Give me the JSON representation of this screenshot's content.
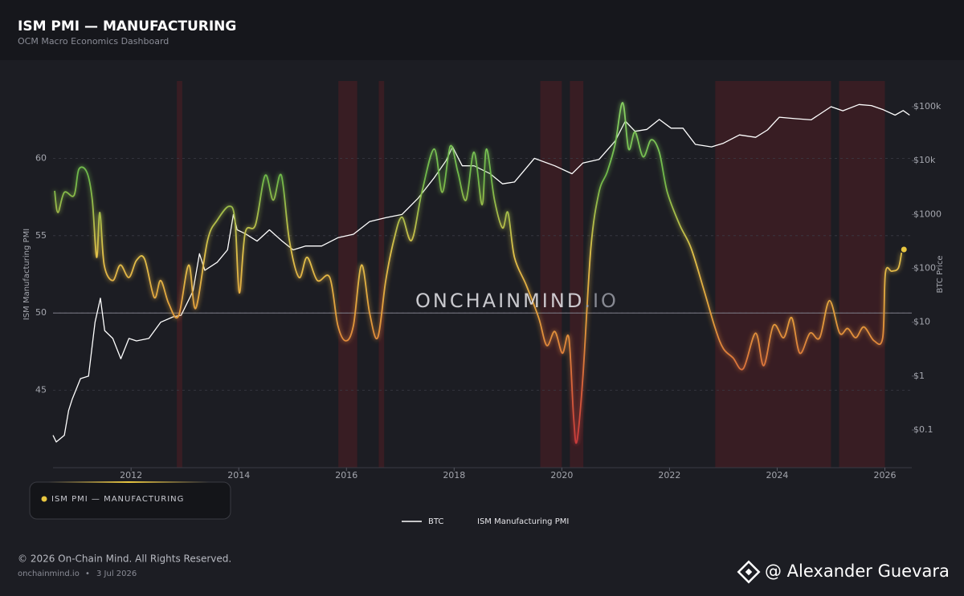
{
  "header": {
    "title": "ISM PMI — MANUFACTURING",
    "subtitle": "OCM Macro Economics Dashboard"
  },
  "card": {
    "label": "ISM PMI — MANUFACTURING"
  },
  "watermark": {
    "main": "ONCHAINMIND",
    "suffix": ".IO"
  },
  "chart_data": {
    "type": "line",
    "y_label": "ISM Manufacturing PMI",
    "y2_label": "BTC Price",
    "xlim": [
      2010.55,
      2026.5
    ],
    "xticks": [
      2012,
      2014,
      2016,
      2018,
      2020,
      2022,
      2024,
      2026
    ],
    "ylim": [
      40,
      65
    ],
    "yticks": [
      45,
      50,
      55,
      60
    ],
    "y2lim": [
      0.02,
      300000
    ],
    "y2ticks": [
      {
        "value": 100000,
        "label": "$100k"
      },
      {
        "value": 10000,
        "label": "$10k"
      },
      {
        "value": 1000,
        "label": "$1000"
      },
      {
        "value": 100,
        "label": "$100"
      },
      {
        "value": 10,
        "label": "$10"
      },
      {
        "value": 1,
        "label": "$1"
      },
      {
        "value": 0.1,
        "label": "$0.1"
      }
    ],
    "y2_log": true,
    "grid": true,
    "reference_line": 50,
    "shaded_regions": [
      [
        2012.85,
        2012.95
      ],
      [
        2015.85,
        2016.2
      ],
      [
        2016.6,
        2016.7
      ],
      [
        2019.6,
        2020.0
      ],
      [
        2020.15,
        2020.4
      ],
      [
        2022.85,
        2025.0
      ],
      [
        2025.15,
        2026.0
      ]
    ],
    "legend": "bottom",
    "series": [
      {
        "name": "BTC",
        "color": "#ffffff",
        "axis": "y2",
        "x": [
          2010.55,
          2010.61,
          2010.76,
          2010.84,
          2010.91,
          2011.06,
          2011.21,
          2011.33,
          2011.43,
          2011.51,
          2011.66,
          2011.81,
          2011.96,
          2012.1,
          2012.33,
          2012.55,
          2012.78,
          2012.93,
          2013.15,
          2013.27,
          2013.37,
          2013.6,
          2013.79,
          2013.9,
          2013.97,
          2014.12,
          2014.34,
          2014.57,
          2014.79,
          2015.01,
          2015.24,
          2015.54,
          2015.84,
          2016.13,
          2016.43,
          2016.73,
          2017.03,
          2017.33,
          2017.63,
          2017.85,
          2017.97,
          2018.15,
          2018.37,
          2018.67,
          2018.9,
          2019.12,
          2019.34,
          2019.49,
          2019.87,
          2020.19,
          2020.39,
          2020.69,
          2020.99,
          2021.18,
          2021.36,
          2021.58,
          2021.81,
          2022.03,
          2022.25,
          2022.48,
          2022.78,
          2023.0,
          2023.3,
          2023.6,
          2023.82,
          2024.04,
          2024.33,
          2024.63,
          2025.0,
          2025.22,
          2025.52,
          2025.75,
          2025.97,
          2026.19,
          2026.34,
          2026.46
        ],
        "values": [
          0.08,
          0.06,
          0.08,
          0.23,
          0.38,
          0.9,
          1.0,
          10,
          28,
          7,
          5,
          2.1,
          5,
          4.5,
          5,
          10,
          12.6,
          13.5,
          38,
          187,
          92,
          130,
          220,
          1000,
          520,
          440,
          320,
          520,
          330,
          220,
          260,
          260,
          370,
          430,
          740,
          870,
          1000,
          2000,
          4800,
          10000,
          18000,
          8000,
          8000,
          5700,
          3700,
          4000,
          7300,
          11000,
          8000,
          5700,
          9000,
          10500,
          23000,
          54000,
          35000,
          38000,
          58000,
          40000,
          40000,
          20000,
          18000,
          21000,
          30000,
          27000,
          37000,
          64000,
          60000,
          57000,
          100000,
          84000,
          110000,
          105000,
          88000,
          70000,
          85000,
          70000
        ]
      },
      {
        "name": "ISM Manufacturing PMI",
        "color": "#e8c640",
        "axis": "y",
        "x": [
          2010.58,
          2010.64,
          2010.76,
          2010.94,
          2011.03,
          2011.18,
          2011.28,
          2011.36,
          2011.42,
          2011.5,
          2011.66,
          2011.8,
          2011.96,
          2012.1,
          2012.25,
          2012.43,
          2012.55,
          2012.7,
          2012.88,
          2013.07,
          2013.2,
          2013.42,
          2013.6,
          2013.82,
          2013.93,
          2014.01,
          2014.12,
          2014.31,
          2014.49,
          2014.64,
          2014.79,
          2014.94,
          2015.12,
          2015.27,
          2015.46,
          2015.69,
          2015.84,
          2015.99,
          2016.13,
          2016.28,
          2016.43,
          2016.58,
          2016.73,
          2016.88,
          2017.03,
          2017.21,
          2017.4,
          2017.63,
          2017.78,
          2017.93,
          2018.07,
          2018.22,
          2018.37,
          2018.52,
          2018.6,
          2018.75,
          2018.9,
          2019.0,
          2019.12,
          2019.34,
          2019.57,
          2019.72,
          2019.87,
          2020.01,
          2020.13,
          2020.22,
          2020.28,
          2020.39,
          2020.54,
          2020.69,
          2020.84,
          2020.99,
          2021.13,
          2021.24,
          2021.36,
          2021.51,
          2021.66,
          2021.81,
          2021.96,
          2022.19,
          2022.4,
          2022.63,
          2022.85,
          2023.0,
          2023.18,
          2023.37,
          2023.6,
          2023.75,
          2023.93,
          2024.12,
          2024.27,
          2024.42,
          2024.61,
          2024.79,
          2024.97,
          2025.16,
          2025.31,
          2025.46,
          2025.61,
          2025.8,
          2025.96,
          2026.01,
          2026.13,
          2026.25,
          2026.31
        ],
        "values": [
          57.9,
          56.5,
          57.8,
          57.6,
          59.3,
          59.1,
          57.3,
          53.6,
          56.5,
          53.1,
          52.1,
          53.1,
          52.3,
          53.4,
          53.5,
          51.0,
          52.1,
          50.6,
          49.8,
          53.1,
          50.3,
          54.7,
          56.0,
          56.9,
          56.0,
          51.3,
          55.2,
          55.7,
          58.9,
          57.3,
          58.9,
          54.7,
          52.3,
          53.6,
          52.1,
          52.3,
          49.2,
          48.2,
          49.2,
          53.1,
          50.0,
          48.4,
          52.1,
          54.7,
          56.2,
          54.7,
          57.8,
          60.6,
          57.8,
          60.8,
          59.1,
          57.3,
          60.4,
          57.0,
          60.6,
          57.3,
          55.5,
          56.5,
          53.6,
          51.8,
          49.7,
          47.9,
          48.8,
          47.4,
          48.4,
          43.2,
          41.7,
          45.8,
          54.2,
          57.8,
          59.1,
          60.9,
          63.6,
          60.6,
          61.7,
          60.1,
          61.2,
          60.4,
          57.8,
          55.7,
          54.2,
          51.6,
          49.0,
          47.7,
          47.1,
          46.4,
          48.7,
          46.6,
          49.2,
          48.4,
          49.7,
          47.4,
          48.7,
          48.4,
          50.8,
          48.7,
          49.0,
          48.4,
          49.1,
          48.2,
          48.4,
          52.6,
          52.7,
          52.9,
          53.9
        ]
      }
    ]
  },
  "footer": {
    "copyright": "© 2026 On-Chain Mind. All Rights Reserved.",
    "site": "onchainmind.io",
    "separator": "•",
    "date": "3 Jul 2026"
  },
  "attribution": {
    "text": "@ Alexander Guevara"
  }
}
